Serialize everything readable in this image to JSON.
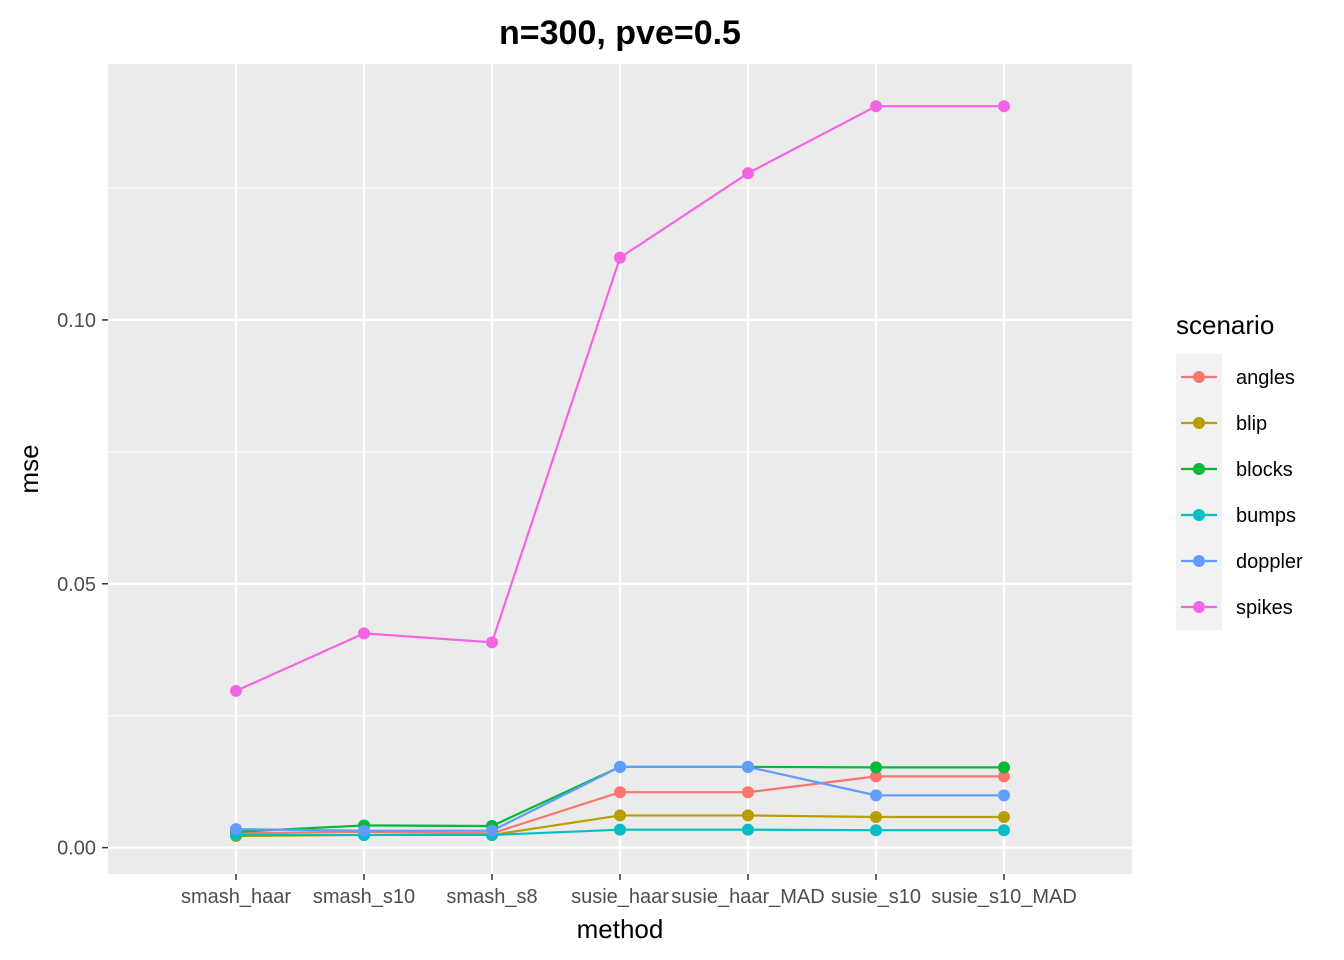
{
  "chart_data": {
    "type": "line",
    "title": "n=300, pve=0.5",
    "xlabel": "method",
    "ylabel": "mse",
    "categories": [
      "smash_haar",
      "smash_s10",
      "smash_s8",
      "susie_haar",
      "susie_haar_MAD",
      "susie_s10",
      "susie_s10_MAD"
    ],
    "ylim": [
      -0.005,
      0.1485
    ],
    "yticks": [
      0.0,
      0.05,
      0.1
    ],
    "ytick_labels": [
      "0.00",
      "0.05",
      "0.10"
    ],
    "grid": true,
    "legend_title": "scenario",
    "legend_position": "right",
    "series": [
      {
        "name": "angles",
        "color": "#F8766D",
        "values": [
          0.0027,
          0.003,
          0.0027,
          0.0105,
          0.0105,
          0.0135,
          0.0135
        ]
      },
      {
        "name": "blip",
        "color": "#B79F00",
        "values": [
          0.0022,
          0.0024,
          0.0024,
          0.0061,
          0.0061,
          0.0058,
          0.0058
        ]
      },
      {
        "name": "blocks",
        "color": "#00BA38",
        "values": [
          0.003,
          0.0042,
          0.0041,
          0.0153,
          0.0153,
          0.0152,
          0.0152
        ]
      },
      {
        "name": "bumps",
        "color": "#00BFC4",
        "values": [
          0.0024,
          0.0024,
          0.0024,
          0.0034,
          0.0034,
          0.0033,
          0.0033
        ]
      },
      {
        "name": "doppler",
        "color": "#619CFF",
        "values": [
          0.0035,
          0.0032,
          0.0032,
          0.0153,
          0.0153,
          0.0099,
          0.0099
        ]
      },
      {
        "name": "spikes",
        "color": "#F564E3",
        "values": [
          0.0297,
          0.0406,
          0.0389,
          0.1118,
          0.1278,
          0.1405,
          0.1405
        ]
      }
    ]
  }
}
